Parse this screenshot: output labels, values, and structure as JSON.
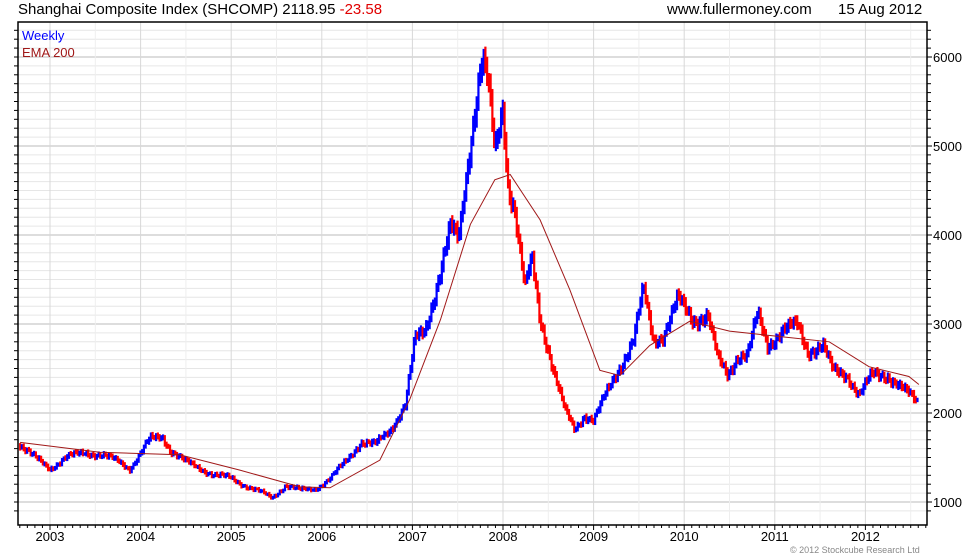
{
  "header": {
    "title": "Shanghai Composite Index (SHCOMP)",
    "last": "2118.95",
    "change": "-23.58",
    "site": "www.fullermoney.com",
    "date": "15 Aug 2012"
  },
  "footer": {
    "copyright": "© 2012 Stockcube Research Ltd"
  },
  "colors": {
    "up": "#0000ff",
    "down": "#ff0000",
    "ema": "#a01818",
    "grid": "#e6e6e6",
    "grid_major": "#bbbbbb"
  },
  "chart_data": {
    "type": "line",
    "title": "Shanghai Composite Index (SHCOMP)",
    "legend": [
      {
        "label": "Weekly",
        "color": "#0000ff"
      },
      {
        "label": "EMA 200",
        "color": "#a01818"
      }
    ],
    "legend_position": "top-left",
    "xlim": [
      2002.67,
      2012.7
    ],
    "ylim": [
      880,
      6530
    ],
    "x_ticks": [
      "2003",
      "2004",
      "2005",
      "2006",
      "2007",
      "2008",
      "2009",
      "2010",
      "2011",
      "2012"
    ],
    "y_ticks": [
      1000,
      2000,
      3000,
      4000,
      5000,
      6000
    ],
    "grid": true,
    "series": [
      {
        "name": "Weekly",
        "points": [
          [
            2002.67,
            1640
          ],
          [
            2002.83,
            1495
          ],
          [
            2003.0,
            1380
          ],
          [
            2003.17,
            1495
          ],
          [
            2003.39,
            1560
          ],
          [
            2003.55,
            1530
          ],
          [
            2003.77,
            1450
          ],
          [
            2003.88,
            1380
          ],
          [
            2003.99,
            1530
          ],
          [
            2004.1,
            1700
          ],
          [
            2004.24,
            1740
          ],
          [
            2004.33,
            1585
          ],
          [
            2004.49,
            1450
          ],
          [
            2004.66,
            1380
          ],
          [
            2004.82,
            1300
          ],
          [
            2004.99,
            1270
          ],
          [
            2005.15,
            1190
          ],
          [
            2005.32,
            1110
          ],
          [
            2005.45,
            1045
          ],
          [
            2005.6,
            1190
          ],
          [
            2005.76,
            1130
          ],
          [
            2005.93,
            1150
          ],
          [
            2006.1,
            1270
          ],
          [
            2006.26,
            1450
          ],
          [
            2006.43,
            1675
          ],
          [
            2006.59,
            1640
          ],
          [
            2006.75,
            1810
          ],
          [
            2006.92,
            2090
          ],
          [
            2007.03,
            2820
          ],
          [
            2007.14,
            2930
          ],
          [
            2007.31,
            3600
          ],
          [
            2007.42,
            4060
          ],
          [
            2007.51,
            3950
          ],
          [
            2007.6,
            4730
          ],
          [
            2007.7,
            5520
          ],
          [
            2007.77,
            5970
          ],
          [
            2007.84,
            5630
          ],
          [
            2007.91,
            4900
          ],
          [
            2008.0,
            5460
          ],
          [
            2008.05,
            4620
          ],
          [
            2008.13,
            4280
          ],
          [
            2008.24,
            3380
          ],
          [
            2008.32,
            3720
          ],
          [
            2008.41,
            3050
          ],
          [
            2008.49,
            2760
          ],
          [
            2008.57,
            2430
          ],
          [
            2008.68,
            2030
          ],
          [
            2008.79,
            1810
          ],
          [
            2008.9,
            1980
          ],
          [
            2009.0,
            1920
          ],
          [
            2009.11,
            2150
          ],
          [
            2009.27,
            2480
          ],
          [
            2009.44,
            2820
          ],
          [
            2009.55,
            3380
          ],
          [
            2009.66,
            2820
          ],
          [
            2009.77,
            2880
          ],
          [
            2009.93,
            3270
          ],
          [
            2010.1,
            3050
          ],
          [
            2010.26,
            3100
          ],
          [
            2010.37,
            2600
          ],
          [
            2010.48,
            2430
          ],
          [
            2010.59,
            2650
          ],
          [
            2010.7,
            2650
          ],
          [
            2010.81,
            3100
          ],
          [
            2010.92,
            2760
          ],
          [
            2011.08,
            2930
          ],
          [
            2011.25,
            2980
          ],
          [
            2011.36,
            2700
          ],
          [
            2011.53,
            2760
          ],
          [
            2011.64,
            2470
          ],
          [
            2011.8,
            2430
          ],
          [
            2011.93,
            2200
          ],
          [
            2012.08,
            2430
          ],
          [
            2012.24,
            2430
          ],
          [
            2012.41,
            2260
          ],
          [
            2012.59,
            2119
          ]
        ]
      },
      {
        "name": "EMA 200",
        "points": [
          [
            2002.67,
            1670
          ],
          [
            2003.55,
            1560
          ],
          [
            2004.43,
            1530
          ],
          [
            2005.09,
            1360
          ],
          [
            2005.76,
            1170
          ],
          [
            2006.09,
            1160
          ],
          [
            2006.64,
            1470
          ],
          [
            2006.97,
            2150
          ],
          [
            2007.31,
            3050
          ],
          [
            2007.64,
            4120
          ],
          [
            2007.91,
            4620
          ],
          [
            2008.08,
            4680
          ],
          [
            2008.41,
            4170
          ],
          [
            2008.74,
            3380
          ],
          [
            2009.07,
            2480
          ],
          [
            2009.29,
            2420
          ],
          [
            2009.62,
            2760
          ],
          [
            2010.06,
            3030
          ],
          [
            2010.5,
            2920
          ],
          [
            2011.05,
            2860
          ],
          [
            2011.6,
            2800
          ],
          [
            2012.04,
            2520
          ],
          [
            2012.48,
            2410
          ],
          [
            2012.59,
            2320
          ]
        ]
      }
    ]
  }
}
